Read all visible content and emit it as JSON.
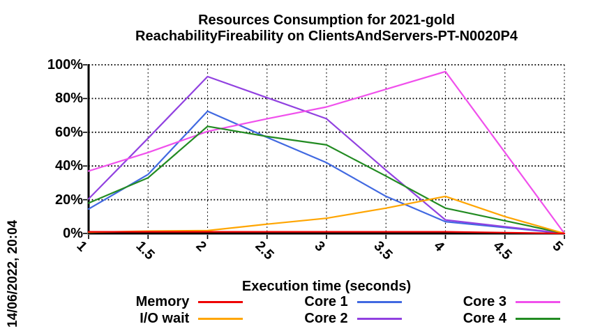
{
  "header": {
    "title_line1": "Resources Consumption for 2021-gold",
    "title_line2": "ReachabilityFireability on ClientsAndServers-PT-N0020P4"
  },
  "side_note": {
    "timestamp": "14/06/2022, 20:04"
  },
  "chart_data": {
    "type": "line",
    "title": "Resources Consumption for 2021-gold ReachabilityFireability on ClientsAndServers-PT-N0020P4",
    "xlabel": "Execution time (seconds)",
    "ylabel": "",
    "xlim": [
      1,
      5
    ],
    "ylim": [
      0,
      100
    ],
    "grid": true,
    "legend_position": "bottom-center",
    "x": [
      1,
      1.5,
      2,
      2.5,
      3,
      3.5,
      4,
      4.5,
      5
    ],
    "x_tick_labels": [
      "1",
      "1.5",
      "2",
      "2.5",
      "3",
      "3.5",
      "4",
      "4.5",
      "5"
    ],
    "y_ticks": [
      0,
      20,
      40,
      60,
      80,
      100
    ],
    "y_tick_labels": [
      "0%",
      "20%",
      "40%",
      "60%",
      "80%",
      "100%"
    ],
    "series": [
      {
        "name": "Memory",
        "color": "#ee0000",
        "values": [
          1,
          1,
          1,
          1,
          1,
          1,
          1,
          0.5,
          0
        ]
      },
      {
        "name": "I/O wait",
        "color": "#ffa500",
        "values": [
          0.7,
          1.4,
          1.7,
          5.5,
          9,
          15,
          22,
          10,
          0
        ]
      },
      {
        "name": "Core 1",
        "color": "#4169e1",
        "values": [
          14.5,
          35,
          72.5,
          57,
          42,
          22,
          7,
          3.5,
          0
        ]
      },
      {
        "name": "Core 2",
        "color": "#9141e0",
        "values": [
          20.5,
          56.5,
          93,
          80.5,
          68,
          37.5,
          8,
          4,
          0
        ]
      },
      {
        "name": "Core 3",
        "color": "#f050ec",
        "values": [
          37,
          48,
          60.5,
          68,
          75,
          85.5,
          96,
          48,
          0
        ]
      },
      {
        "name": "Core 4",
        "color": "#228b22",
        "values": [
          18,
          33,
          63.5,
          57.5,
          52.5,
          34,
          15,
          7.5,
          0
        ]
      }
    ],
    "draw_order": [
      "Core 1",
      "Core 2",
      "Core 3",
      "Core 4",
      "I/O wait",
      "Memory"
    ]
  },
  "legend": {
    "rows": [
      [
        "Memory",
        "Core 1",
        "Core 3"
      ],
      [
        "I/O wait",
        "Core 2",
        "Core 4"
      ]
    ]
  }
}
